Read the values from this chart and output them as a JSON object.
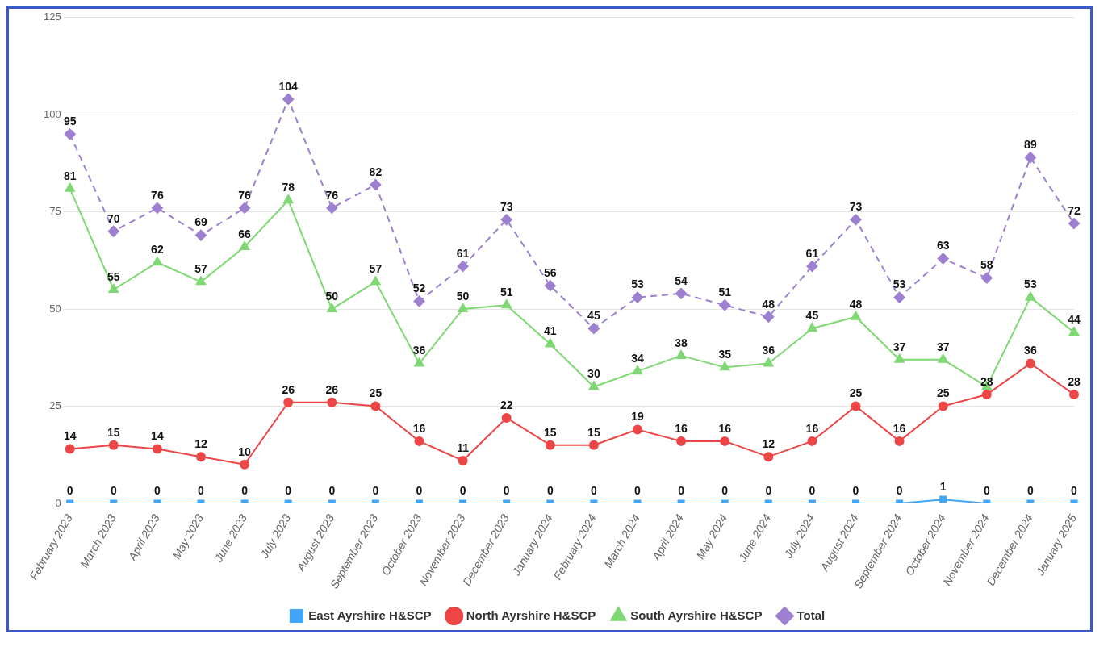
{
  "chart_data": {
    "type": "line",
    "categories": [
      "February 2023",
      "March 2023",
      "April 2023",
      "May 2023",
      "June 2023",
      "July 2023",
      "August 2023",
      "September 2023",
      "October 2023",
      "November 2023",
      "December 2023",
      "January 2024",
      "February 2024",
      "March 2024",
      "April 2024",
      "May 2024",
      "June 2024",
      "July 2024",
      "August 2024",
      "September 2024",
      "October 2024",
      "November 2024",
      "December 2024",
      "January 2025"
    ],
    "series": [
      {
        "name": "East Ayrshire H&SCP",
        "color": "#42a5f5",
        "marker": "square",
        "line_style": "solid",
        "values": [
          0,
          0,
          0,
          0,
          0,
          0,
          0,
          0,
          0,
          0,
          0,
          0,
          0,
          0,
          0,
          0,
          0,
          0,
          0,
          0,
          1,
          0,
          0,
          0
        ],
        "value_labels": [
          "0",
          "0",
          "0",
          "0",
          "0",
          "0",
          "0",
          "0",
          "0",
          "0",
          "0",
          "0",
          "0",
          "0",
          "0",
          "0",
          "0",
          "0",
          "0",
          "0",
          "1",
          "0",
          "0",
          "0"
        ]
      },
      {
        "name": "North Ayrshire H&SCP",
        "color": "#ec4646",
        "marker": "circle",
        "line_style": "solid",
        "values": [
          14,
          15,
          14,
          12,
          10,
          26,
          26,
          25,
          16,
          11,
          22,
          15,
          15,
          19,
          16,
          16,
          12,
          16,
          25,
          16,
          25,
          28,
          36,
          28
        ],
        "value_labels": [
          "14",
          "15",
          "14",
          "12",
          "10",
          "26",
          "26",
          "25",
          "16",
          "11",
          "22",
          "15",
          "15",
          "19",
          "16",
          "16",
          "12",
          "16",
          "25",
          "16",
          "25",
          "28",
          "36",
          "28"
        ]
      },
      {
        "name": "South Ayrshire H&SCP",
        "color": "#7fd873",
        "marker": "triangle",
        "line_style": "solid",
        "values": [
          81,
          55,
          62,
          57,
          66,
          78,
          50,
          57,
          36,
          50,
          51,
          41,
          30,
          34,
          38,
          35,
          36,
          45,
          48,
          37,
          37,
          30,
          53,
          44
        ],
        "value_labels": [
          "81",
          "55",
          "62",
          "57",
          "66",
          "78",
          "50",
          "57",
          "36",
          "50",
          "51",
          "41",
          "30",
          "34",
          "38",
          "35",
          "36",
          "45",
          "48",
          "37",
          "37",
          null,
          "53",
          "44"
        ]
      },
      {
        "name": "Total",
        "color": "#9d80cf",
        "marker": "diamond",
        "line_style": "dashed",
        "values": [
          95,
          70,
          76,
          69,
          76,
          104,
          76,
          82,
          52,
          61,
          73,
          56,
          45,
          53,
          54,
          51,
          48,
          61,
          73,
          53,
          63,
          58,
          89,
          72
        ],
        "value_labels": [
          "95",
          "70",
          "76",
          "69",
          "76",
          "104",
          "76",
          "82",
          "52",
          "61",
          "73",
          "56",
          "45",
          "53",
          "54",
          "51",
          "48",
          "61",
          "73",
          "53",
          "63",
          "58",
          "89",
          "72"
        ]
      }
    ],
    "ylim": [
      0,
      125
    ],
    "yticks": [
      0,
      25,
      50,
      75,
      100,
      125
    ],
    "grid": "y",
    "legend": "bottom"
  }
}
